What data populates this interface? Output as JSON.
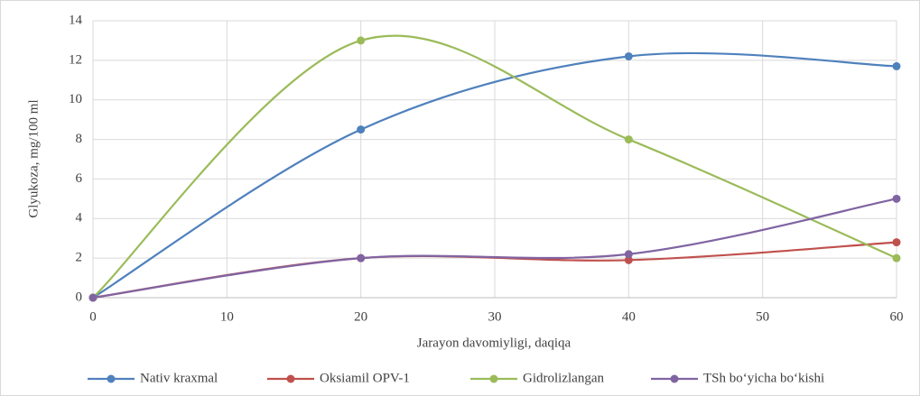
{
  "chart_data": {
    "type": "line",
    "x": [
      0,
      20,
      40,
      60
    ],
    "series": [
      {
        "name": "Nativ kraxmal",
        "color": "#4f81bd",
        "values": [
          0,
          8.5,
          12.2,
          11.7
        ]
      },
      {
        "name": "Oksiamil OPV-1",
        "color": "#c0504d",
        "values": [
          0,
          2,
          1.9,
          2.8
        ]
      },
      {
        "name": "Gidrolizlangan",
        "color": "#9bbb59",
        "values": [
          0,
          13,
          8,
          2
        ]
      },
      {
        "name": "TSh bo‘yicha bo‘kishi",
        "color": "#8064a2",
        "values": [
          0,
          2,
          2.2,
          5
        ]
      }
    ],
    "xlabel": "Jarayon davomiyligi, daqiqa",
    "ylabel": "Glyukoza, mg/100 ml",
    "xlim": [
      0,
      60
    ],
    "xticks": [
      0,
      10,
      20,
      30,
      40,
      50,
      60
    ],
    "ylim": [
      0,
      14
    ],
    "yticks": [
      0,
      2,
      4,
      6,
      8,
      10,
      12,
      14
    ],
    "grid": true,
    "smooth": true,
    "legend": "bottom"
  }
}
